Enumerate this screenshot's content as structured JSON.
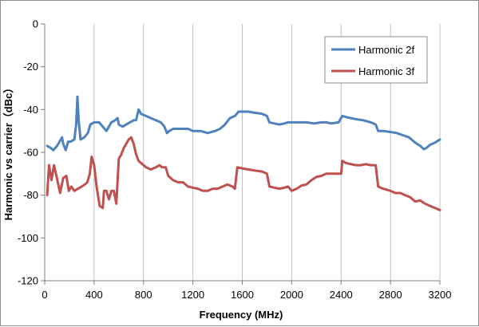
{
  "chart_data": {
    "type": "line",
    "title": "",
    "xlabel": "Frequency (MHz)",
    "ylabel": "Harmonic vs carrier（dBc）",
    "xlim": [
      0,
      3200
    ],
    "ylim": [
      -120,
      0
    ],
    "x_ticks": [
      0,
      400,
      800,
      1200,
      1600,
      2000,
      2400,
      2800,
      3200
    ],
    "y_ticks": [
      0,
      -20,
      -40,
      -60,
      -80,
      -100,
      -120
    ],
    "x_tick_labels": [
      "0",
      "400",
      "800",
      "1200",
      "1600",
      "2000",
      "2400",
      "2800",
      "3200"
    ],
    "y_tick_labels": [
      "0",
      "-20",
      "-40",
      "-60",
      "-80",
      "-100",
      "-120"
    ],
    "grid": "vertical",
    "legend": "top-right",
    "series": [
      {
        "name": "Harmonic 2f",
        "color": "#4f81bd",
        "points": [
          [
            20,
            -57
          ],
          [
            50,
            -58
          ],
          [
            70,
            -59
          ],
          [
            100,
            -57
          ],
          [
            120,
            -55
          ],
          [
            140,
            -53
          ],
          [
            150,
            -56
          ],
          [
            170,
            -59
          ],
          [
            190,
            -55
          ],
          [
            210,
            -55
          ],
          [
            240,
            -54
          ],
          [
            255,
            -47
          ],
          [
            265,
            -34
          ],
          [
            275,
            -45
          ],
          [
            290,
            -54
          ],
          [
            320,
            -53
          ],
          [
            350,
            -51
          ],
          [
            370,
            -47
          ],
          [
            400,
            -46
          ],
          [
            440,
            -46
          ],
          [
            470,
            -48
          ],
          [
            500,
            -50
          ],
          [
            520,
            -48
          ],
          [
            540,
            -46
          ],
          [
            570,
            -45
          ],
          [
            590,
            -44
          ],
          [
            600,
            -47
          ],
          [
            630,
            -48
          ],
          [
            660,
            -47
          ],
          [
            690,
            -46
          ],
          [
            720,
            -45
          ],
          [
            740,
            -45
          ],
          [
            760,
            -40
          ],
          [
            780,
            -42
          ],
          [
            820,
            -43
          ],
          [
            860,
            -44
          ],
          [
            900,
            -45
          ],
          [
            940,
            -46
          ],
          [
            970,
            -48
          ],
          [
            990,
            -51
          ],
          [
            1010,
            -50
          ],
          [
            1040,
            -49
          ],
          [
            1100,
            -49
          ],
          [
            1160,
            -49
          ],
          [
            1200,
            -50
          ],
          [
            1260,
            -50
          ],
          [
            1320,
            -51
          ],
          [
            1380,
            -50
          ],
          [
            1420,
            -49
          ],
          [
            1460,
            -47
          ],
          [
            1500,
            -44
          ],
          [
            1540,
            -43
          ],
          [
            1570,
            -41
          ],
          [
            1600,
            -41
          ],
          [
            1650,
            -41
          ],
          [
            1700,
            -41.5
          ],
          [
            1760,
            -42
          ],
          [
            1800,
            -43
          ],
          [
            1820,
            -46
          ],
          [
            1860,
            -46.5
          ],
          [
            1900,
            -47
          ],
          [
            1940,
            -46.5
          ],
          [
            1970,
            -46
          ],
          [
            2000,
            -46
          ],
          [
            2060,
            -46
          ],
          [
            2120,
            -46
          ],
          [
            2180,
            -46.5
          ],
          [
            2240,
            -46
          ],
          [
            2280,
            -46
          ],
          [
            2320,
            -46.5
          ],
          [
            2380,
            -46
          ],
          [
            2410,
            -43
          ],
          [
            2440,
            -43.5
          ],
          [
            2480,
            -44
          ],
          [
            2520,
            -44.5
          ],
          [
            2580,
            -45
          ],
          [
            2640,
            -46
          ],
          [
            2680,
            -47
          ],
          [
            2700,
            -50
          ],
          [
            2740,
            -50
          ],
          [
            2800,
            -50.5
          ],
          [
            2850,
            -51
          ],
          [
            2900,
            -52
          ],
          [
            2950,
            -53
          ],
          [
            3000,
            -55.5
          ],
          [
            3040,
            -57
          ],
          [
            3070,
            -58.5
          ],
          [
            3090,
            -58
          ],
          [
            3120,
            -56.5
          ],
          [
            3160,
            -55.5
          ],
          [
            3200,
            -54
          ]
        ]
      },
      {
        "name": "Harmonic 3f",
        "color": "#c0504d",
        "points": [
          [
            20,
            -80
          ],
          [
            35,
            -66
          ],
          [
            55,
            -73
          ],
          [
            75,
            -66
          ],
          [
            95,
            -71
          ],
          [
            110,
            -75
          ],
          [
            125,
            -79
          ],
          [
            150,
            -72
          ],
          [
            175,
            -71
          ],
          [
            195,
            -78
          ],
          [
            215,
            -76
          ],
          [
            240,
            -78
          ],
          [
            270,
            -77
          ],
          [
            300,
            -76
          ],
          [
            325,
            -75
          ],
          [
            345,
            -74
          ],
          [
            365,
            -70
          ],
          [
            380,
            -62
          ],
          [
            400,
            -66
          ],
          [
            420,
            -76
          ],
          [
            445,
            -85
          ],
          [
            470,
            -86
          ],
          [
            480,
            -78
          ],
          [
            500,
            -78
          ],
          [
            520,
            -82
          ],
          [
            540,
            -78
          ],
          [
            560,
            -78
          ],
          [
            580,
            -84
          ],
          [
            600,
            -63
          ],
          [
            620,
            -61
          ],
          [
            640,
            -58
          ],
          [
            660,
            -56
          ],
          [
            680,
            -54
          ],
          [
            700,
            -53
          ],
          [
            720,
            -56
          ],
          [
            740,
            -61
          ],
          [
            760,
            -64
          ],
          [
            780,
            -65
          ],
          [
            820,
            -67
          ],
          [
            860,
            -68
          ],
          [
            900,
            -67
          ],
          [
            930,
            -66
          ],
          [
            950,
            -67
          ],
          [
            980,
            -67
          ],
          [
            1000,
            -71
          ],
          [
            1040,
            -73
          ],
          [
            1080,
            -74
          ],
          [
            1120,
            -74
          ],
          [
            1160,
            -76
          ],
          [
            1200,
            -76.5
          ],
          [
            1240,
            -77
          ],
          [
            1280,
            -78
          ],
          [
            1320,
            -78
          ],
          [
            1360,
            -77
          ],
          [
            1400,
            -77
          ],
          [
            1440,
            -76
          ],
          [
            1480,
            -75
          ],
          [
            1520,
            -76
          ],
          [
            1540,
            -77
          ],
          [
            1560,
            -67
          ],
          [
            1600,
            -67.5
          ],
          [
            1650,
            -68
          ],
          [
            1700,
            -68.5
          ],
          [
            1760,
            -69
          ],
          [
            1800,
            -70
          ],
          [
            1820,
            -76
          ],
          [
            1860,
            -76.5
          ],
          [
            1900,
            -77
          ],
          [
            1940,
            -76.5
          ],
          [
            1970,
            -76
          ],
          [
            2000,
            -78
          ],
          [
            2040,
            -77
          ],
          [
            2080,
            -75.5
          ],
          [
            2120,
            -75
          ],
          [
            2160,
            -73
          ],
          [
            2200,
            -71.5
          ],
          [
            2240,
            -71
          ],
          [
            2280,
            -70
          ],
          [
            2320,
            -70
          ],
          [
            2360,
            -70
          ],
          [
            2400,
            -70
          ],
          [
            2410,
            -64
          ],
          [
            2440,
            -65
          ],
          [
            2480,
            -65.5
          ],
          [
            2520,
            -66
          ],
          [
            2560,
            -66
          ],
          [
            2600,
            -65.5
          ],
          [
            2640,
            -66
          ],
          [
            2680,
            -66
          ],
          [
            2700,
            -76
          ],
          [
            2740,
            -77
          ],
          [
            2800,
            -78
          ],
          [
            2840,
            -79
          ],
          [
            2880,
            -79
          ],
          [
            2920,
            -80
          ],
          [
            2960,
            -81
          ],
          [
            3000,
            -83
          ],
          [
            3040,
            -82.5
          ],
          [
            3080,
            -84
          ],
          [
            3120,
            -85
          ],
          [
            3160,
            -86
          ],
          [
            3200,
            -87
          ]
        ]
      }
    ]
  }
}
